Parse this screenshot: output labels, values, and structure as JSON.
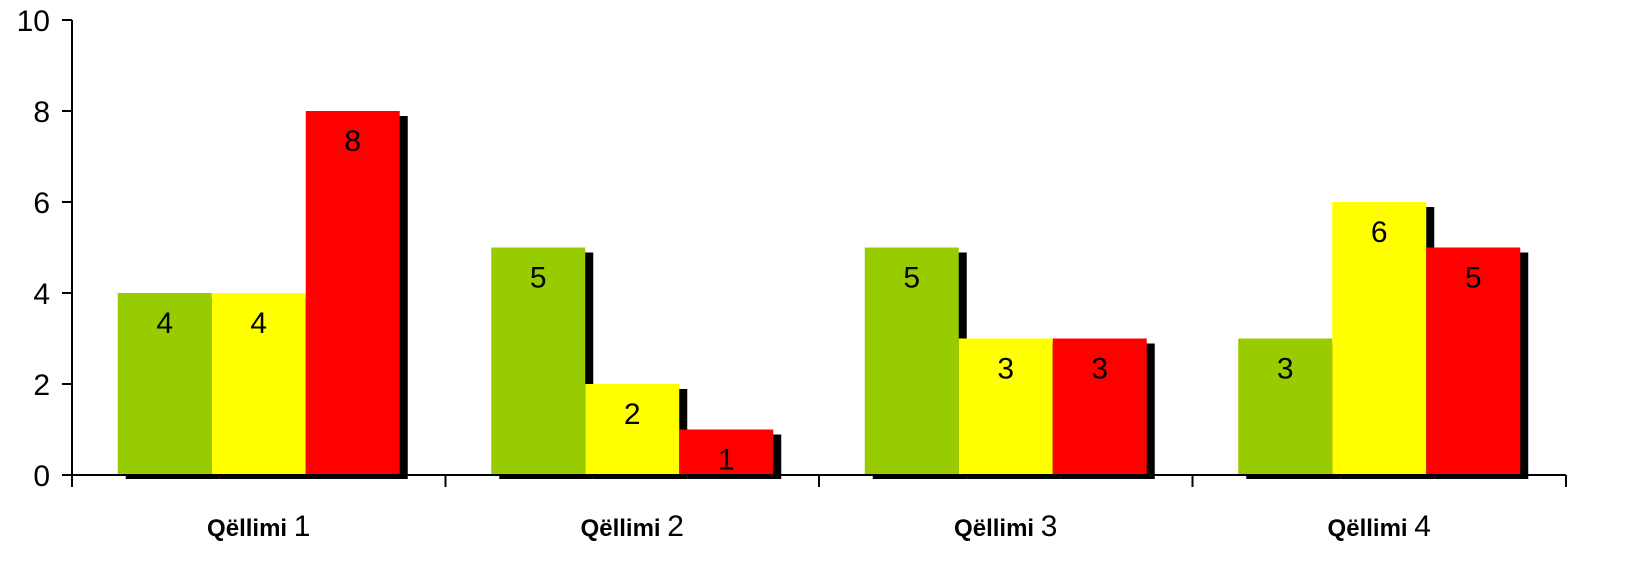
{
  "chart_data": {
    "type": "bar",
    "categories": [
      {
        "prefix": "Qëllimi",
        "number": "1"
      },
      {
        "prefix": "Qëllimi",
        "number": "2"
      },
      {
        "prefix": "Qëllimi",
        "number": "3"
      },
      {
        "prefix": "Qëllimi",
        "number": "4"
      }
    ],
    "series": [
      {
        "values": [
          4,
          5,
          5,
          3
        ],
        "color": "#99CC00"
      },
      {
        "values": [
          4,
          2,
          3,
          6
        ],
        "color": "#FFFF00"
      },
      {
        "values": [
          8,
          1,
          3,
          5
        ],
        "color": "#FF0000"
      }
    ],
    "ylim": [
      0,
      10
    ],
    "yticks": [
      "0",
      "2",
      "4",
      "6",
      "8",
      "10"
    ],
    "grid": false,
    "legend": "none",
    "shadow_color": "#000000"
  }
}
